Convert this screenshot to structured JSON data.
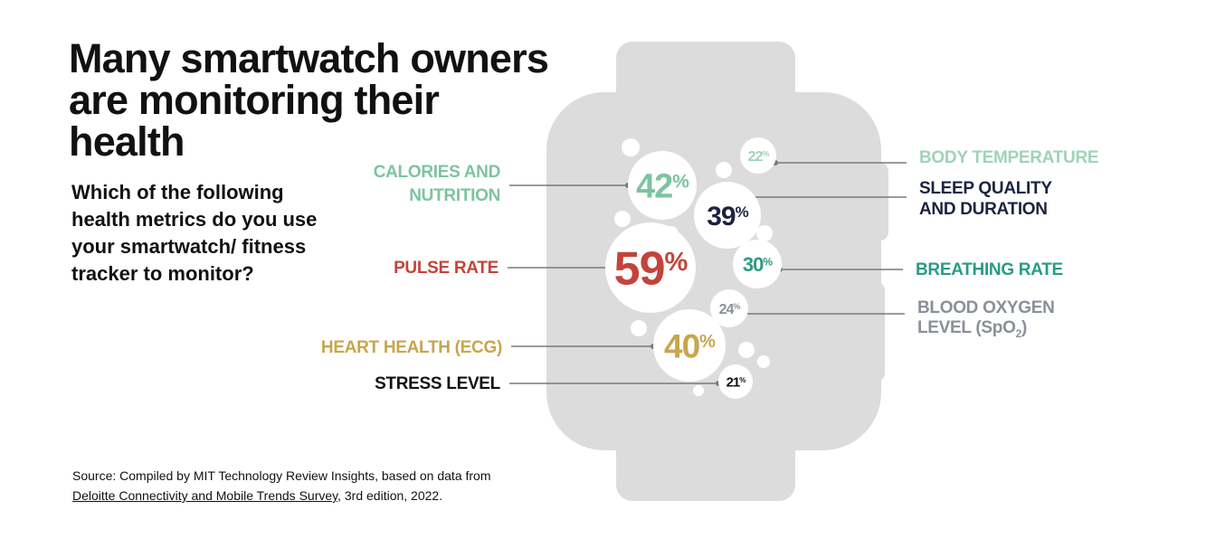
{
  "title": "Many smartwatch owners are monitoring their health",
  "question": "Which of the following health metrics do you use your smartwatch/ fitness tracker to monitor?",
  "source": {
    "prefix": "Source: Compiled by MIT Technology Review Insights, based on data from",
    "link_text": "Deloitte Connectivity and Mobile Trends Survey",
    "suffix": ", 3rd edition, 2022."
  },
  "colors": {
    "watch": "#dcdcdc",
    "bubble": "#ffffff",
    "leader": "#7a7a7a"
  },
  "chart_data": {
    "type": "bubble",
    "title": "Many smartwatch owners are monitoring their health",
    "unit": "%",
    "items": [
      {
        "label_lines": [
          "CALORIES AND",
          "NUTRITION"
        ],
        "value": 42,
        "value_text": "42",
        "color": "#7cc4a0",
        "side": "left"
      },
      {
        "label_lines": [
          "PULSE RATE"
        ],
        "value": 59,
        "value_text": "59",
        "color": "#c4433a",
        "side": "left"
      },
      {
        "label_lines": [
          "HEART HEALTH (ECG)"
        ],
        "value": 40,
        "value_text": "40",
        "color": "#c8a64c",
        "side": "left"
      },
      {
        "label_lines": [
          "STRESS LEVEL"
        ],
        "value": 21,
        "value_text": "21",
        "color": "#111111",
        "side": "left"
      },
      {
        "label_lines": [
          "BODY TEMPERATURE"
        ],
        "value": 22,
        "value_text": "22",
        "color": "#9fd3b8",
        "side": "right"
      },
      {
        "label_lines": [
          "SLEEP QUALITY",
          "AND DURATION"
        ],
        "value": 39,
        "value_text": "39",
        "color": "#1c2340",
        "side": "right"
      },
      {
        "label_lines": [
          "BREATHING RATE"
        ],
        "value": 30,
        "value_text": "30",
        "color": "#2a9a86",
        "side": "right"
      },
      {
        "label_lines": [
          "BLOOD OXYGEN",
          "LEVEL (SpO2)"
        ],
        "value": 24,
        "value_text": "24",
        "color": "#8a9099",
        "side": "right"
      }
    ]
  }
}
